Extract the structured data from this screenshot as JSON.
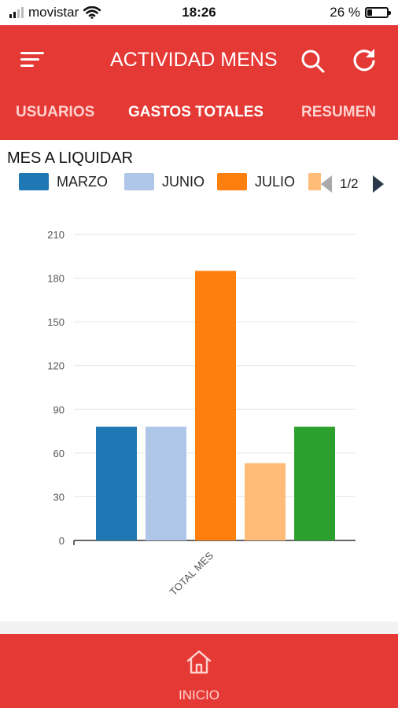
{
  "status_bar": {
    "carrier": "movistar",
    "time": "18:26",
    "battery_percent": "26 %",
    "battery_level": 0.26
  },
  "header": {
    "title": "ACTIVIDAD MENS",
    "menu_icon": "hamburger-menu-icon",
    "search_icon": "search-icon",
    "refresh_icon": "refresh-icon",
    "background_color": "#e53935"
  },
  "tabs": [
    {
      "label": "USUARIOS",
      "active": false
    },
    {
      "label": "GASTOS TOTALES",
      "active": true
    },
    {
      "label": "RESUMEN",
      "active": false
    }
  ],
  "section": {
    "title": "MES A LIQUIDAR"
  },
  "legend": {
    "items": [
      {
        "label": "MARZO",
        "color": "#1f77b4"
      },
      {
        "label": "JUNIO",
        "color": "#aec7e8"
      },
      {
        "label": "JULIO",
        "color": "#ff7f0e"
      }
    ],
    "partial_color": "#ffbb78",
    "page": "1/2"
  },
  "chart_data": {
    "type": "bar",
    "categories": [
      "TOTAL MES"
    ],
    "series": [
      {
        "values": [
          78
        ],
        "color": "#1f77b4"
      },
      {
        "values": [
          78
        ],
        "color": "#aec7e8"
      },
      {
        "values": [
          185
        ],
        "color": "#ff7f0e"
      },
      {
        "values": [
          53
        ],
        "color": "#ffbb78"
      },
      {
        "values": [
          78
        ],
        "color": "#2ca02c"
      }
    ],
    "yticks": [
      "0",
      "30",
      "60",
      "90",
      "120",
      "150",
      "180",
      "210"
    ],
    "ylim": [
      0,
      210
    ],
    "grid": true,
    "xlabel": "",
    "ylabel": ""
  },
  "bottom_nav": {
    "home_label": "INICIO",
    "home_icon": "home-icon"
  }
}
